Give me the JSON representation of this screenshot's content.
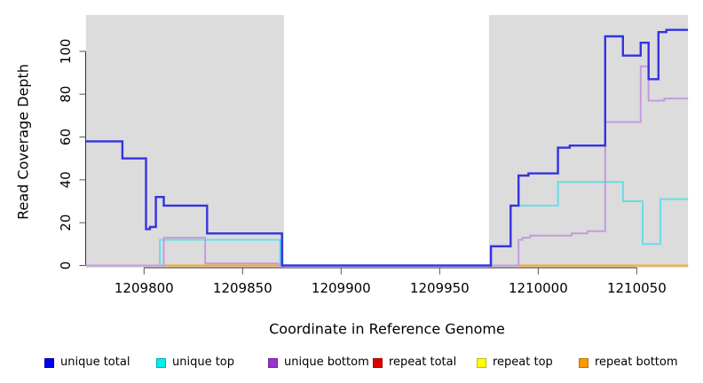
{
  "chart_data": {
    "type": "line",
    "title": "",
    "xlabel": "Coordinate in Reference Genome",
    "ylabel": "Read Coverage Depth",
    "xlim": [
      1209770.5,
      1210076
    ],
    "ylim": [
      0,
      117
    ],
    "x_ticks": [
      1209800,
      1209850,
      1209900,
      1209950,
      1210000,
      1210050
    ],
    "x_tick_labels": [
      "1209800",
      "1209850",
      "1209900",
      "1209950",
      "1210000",
      "1210050"
    ],
    "y_ticks": [
      0,
      20,
      40,
      60,
      80,
      100
    ],
    "y_tick_labels": [
      "0",
      "20",
      "40",
      "60",
      "80",
      "100"
    ],
    "grid": false,
    "legend_position": "bottom",
    "shade_color": "#DCDCDC",
    "shaded_regions": [
      [
        1209770.5,
        1209871
      ],
      [
        1209975,
        1210076
      ]
    ],
    "series": [
      {
        "id": "repeat-total",
        "name": "repeat total",
        "color": "#DD0000",
        "line_color": "#E03030",
        "opacity": 0.9,
        "points": [
          [
            1209770.5,
            0
          ]
        ]
      },
      {
        "id": "unique-top",
        "name": "unique top",
        "color": "#00EEEE",
        "line_color": "#63DFE8",
        "opacity": 1,
        "points": [
          [
            1209770.5,
            0
          ],
          [
            1209808,
            12
          ],
          [
            1209869,
            0
          ],
          [
            1209976,
            9
          ],
          [
            1209986,
            28
          ],
          [
            1210010,
            39
          ],
          [
            1210043,
            30
          ],
          [
            1210053,
            10
          ],
          [
            1210062,
            31
          ]
        ]
      },
      {
        "id": "repeat-top",
        "name": "repeat top",
        "color": "#FFFF00",
        "line_color": "#F0F000",
        "opacity": 0.8,
        "points": [
          [
            1209770.5,
            0
          ]
        ]
      },
      {
        "id": "repeat-bottom",
        "name": "repeat bottom",
        "color": "#FF9900",
        "line_color": "#FFA520",
        "opacity": 1,
        "points": [
          [
            1209808,
            0
          ]
        ]
      },
      {
        "id": "unique-bottom",
        "name": "unique bottom",
        "color": "#9932CC",
        "line_color": "#C49BDC",
        "opacity": 1,
        "points": [
          [
            1209770.5,
            0
          ],
          [
            1209810,
            13
          ],
          [
            1209831,
            1
          ],
          [
            1209868,
            0
          ],
          [
            1209990,
            12
          ],
          [
            1209992,
            13
          ],
          [
            1209996,
            14
          ],
          [
            1210017,
            15
          ],
          [
            1210025,
            16
          ],
          [
            1210034,
            67
          ],
          [
            1210052,
            93
          ],
          [
            1210056,
            77
          ],
          [
            1210064,
            78
          ]
        ]
      },
      {
        "id": "unique-total",
        "name": "unique total",
        "color": "#0000EE",
        "line_color": "#3333E0",
        "opacity": 1,
        "points": [
          [
            1209770.5,
            58
          ],
          [
            1209789,
            50
          ],
          [
            1209801,
            17
          ],
          [
            1209803,
            18
          ],
          [
            1209806,
            32
          ],
          [
            1209810,
            28
          ],
          [
            1209832,
            15
          ],
          [
            1209870,
            0
          ],
          [
            1209976,
            9
          ],
          [
            1209986,
            28
          ],
          [
            1209990,
            42
          ],
          [
            1209995,
            43
          ],
          [
            1210010,
            55
          ],
          [
            1210016,
            56
          ],
          [
            1210034,
            107
          ],
          [
            1210043,
            98
          ],
          [
            1210052,
            104
          ],
          [
            1210056,
            87
          ],
          [
            1210061,
            109
          ],
          [
            1210065,
            110
          ]
        ]
      }
    ],
    "legend": [
      {
        "id": "unique-total",
        "label": "unique total",
        "color": "#0000EE"
      },
      {
        "id": "unique-top",
        "label": "unique top",
        "color": "#00EEEE"
      },
      {
        "id": "unique-bottom",
        "label": "unique bottom",
        "color": "#9932CC"
      },
      {
        "id": "repeat-total",
        "label": "repeat total",
        "color": "#DD0000"
      },
      {
        "id": "repeat-top",
        "label": "repeat top",
        "color": "#FFFF00"
      },
      {
        "id": "repeat-bottom",
        "label": "repeat bottom",
        "color": "#FF9900"
      }
    ]
  }
}
